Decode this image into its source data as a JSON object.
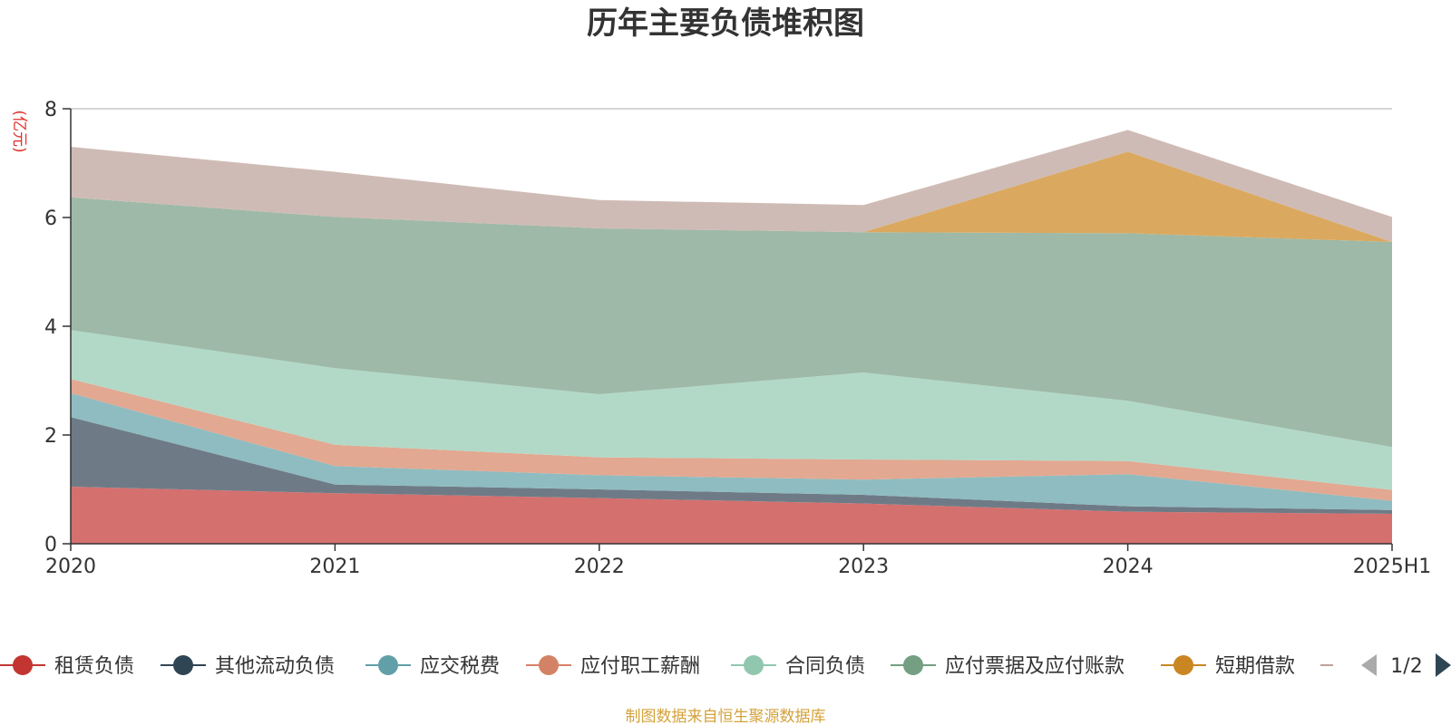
{
  "chart_data": {
    "type": "area",
    "title": "历年主要负债堆积图",
    "ylabel": "(亿元)",
    "categories": [
      "2020",
      "2021",
      "2022",
      "2023",
      "2024",
      "2025H1"
    ],
    "ylim": [
      0,
      8
    ],
    "yticks": [
      0,
      2,
      4,
      6,
      8
    ],
    "grid": true,
    "stacked": true,
    "series": [
      {
        "name": "租赁负债",
        "color": "#c23531",
        "fill": "#d4706e",
        "values": [
          1.05,
          0.93,
          0.84,
          0.74,
          0.59,
          0.55
        ]
      },
      {
        "name": "其他流动负债",
        "color": "#2f4554",
        "fill": "#6e7b87",
        "values": [
          1.28,
          0.16,
          0.16,
          0.16,
          0.1,
          0.07
        ]
      },
      {
        "name": "应交税费",
        "color": "#61a0a8",
        "fill": "#8fbcc0",
        "values": [
          0.44,
          0.34,
          0.26,
          0.28,
          0.59,
          0.17
        ]
      },
      {
        "name": "应付职工薪酬",
        "color": "#d48265",
        "fill": "#e2a891",
        "values": [
          0.26,
          0.39,
          0.33,
          0.37,
          0.24,
          0.2
        ]
      },
      {
        "name": "合同负债",
        "color": "#91c7ae",
        "fill": "#b2d9c7",
        "values": [
          0.9,
          1.41,
          1.16,
          1.6,
          1.11,
          0.79
        ]
      },
      {
        "name": "应付票据及应付账款",
        "color": "#749f83",
        "fill": "#9eb9a7",
        "values": [
          2.44,
          2.78,
          3.05,
          2.58,
          3.08,
          3.77
        ]
      },
      {
        "name": "短期借款",
        "color": "#ca8622",
        "fill": "#daa95f",
        "values": [
          0,
          0,
          0,
          0,
          1.5,
          0
        ]
      },
      {
        "name": "",
        "color": "#bda29a",
        "fill": "#cfbbb5",
        "values": [
          0.93,
          0.83,
          0.52,
          0.5,
          0.4,
          0.46
        ]
      }
    ],
    "legend": {
      "position": "bottom",
      "page": "1/2"
    },
    "source": "制图数据来自恒生聚源数据库"
  }
}
